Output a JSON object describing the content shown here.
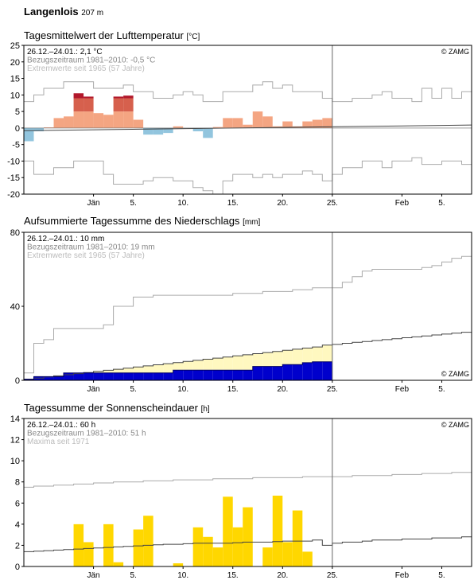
{
  "station": {
    "name": "Langenlois",
    "elevation": "207 m"
  },
  "x_ticks": [
    {
      "day": 7,
      "label": "Jän"
    },
    {
      "day": 11,
      "label": "5."
    },
    {
      "day": 16,
      "label": "10."
    },
    {
      "day": 21,
      "label": "15."
    },
    {
      "day": 26,
      "label": "20."
    },
    {
      "day": 31,
      "label": "25."
    },
    {
      "day": 38,
      "label": "Feb"
    },
    {
      "day": 42,
      "label": "5."
    }
  ],
  "colors": {
    "temp_warm": "#f4a582",
    "temp_warm_extreme": "#d6604d",
    "temp_record": "#b2182b",
    "temp_cold": "#92c5de",
    "precip_deficit": "#fff8c0",
    "precip_actual": "#0000cc",
    "sunshine": "#ffd700",
    "frame": "#000000",
    "ref_line": "#444444",
    "extreme_line": "#aaaaaa",
    "legend_gray": "#888888",
    "legend_light": "#bbbbbb"
  },
  "chart_data": [
    {
      "type": "bar",
      "title": "Tagesmittelwert der Lufttemperatur",
      "unit": "[°C]",
      "ylim": [
        -20,
        25
      ],
      "y_ticks": [
        -20,
        -15,
        -10,
        -5,
        0,
        5,
        10,
        15,
        20,
        25
      ],
      "x_domain_days": [
        0,
        45
      ],
      "current_day": 31,
      "copyright": "© ZAMG",
      "legend": [
        "26.12.–24.01.: 2,1 °C",
        "Bezugszeitraum 1981–2010: -0,5 °C",
        "Extremwerte seit 1965 (57 Jahre)"
      ],
      "reference_mean_y": {
        "x": [
          0,
          45
        ],
        "y": [
          -0.8,
          0.9
        ]
      },
      "series": [
        {
          "name": "daily_mean",
          "values": [
            -4.0,
            -1.0,
            0.2,
            3.0,
            3.5,
            10.5,
            9.5,
            4.5,
            4.0,
            9.5,
            9.8,
            2.5,
            -2.0,
            -2.0,
            -1.5,
            0.5,
            0.0,
            -1.0,
            -3.0,
            0.3,
            3.0,
            3.0,
            1.0,
            5.0,
            3.5,
            0.5,
            2.0,
            0.5,
            2.0,
            2.5,
            3.0
          ]
        },
        {
          "name": "max_extreme",
          "values": [
            8,
            10,
            12,
            12,
            14,
            14,
            14,
            12,
            12,
            12,
            13,
            11,
            11,
            9,
            9,
            10,
            11,
            10,
            8,
            8,
            11,
            11,
            11,
            13,
            14,
            12,
            13,
            11,
            11,
            11,
            9,
            8,
            8,
            9,
            9,
            10,
            11,
            9,
            9,
            8,
            12,
            9,
            12,
            9,
            11
          ]
        },
        {
          "name": "min_extreme",
          "values": [
            -10,
            -14,
            -14,
            -12,
            -12,
            -10,
            -10,
            -10,
            -14,
            -17,
            -17,
            -17,
            -16,
            -15,
            -15,
            -16,
            -16,
            -18,
            -19,
            -20,
            -16,
            -14,
            -14,
            -15,
            -14,
            -15,
            -14,
            -14,
            -13,
            -14,
            -16,
            -14,
            -12,
            -12,
            -10,
            -10,
            -12,
            -10,
            -10,
            -9,
            -11,
            -11,
            -10,
            -10,
            -11
          ]
        }
      ]
    },
    {
      "type": "area",
      "title": "Aufsummierte Tagessumme des Niederschlags",
      "unit": "[mm]",
      "ylim": [
        0,
        80
      ],
      "y_ticks": [
        0,
        40,
        80
      ],
      "x_domain_days": [
        0,
        45
      ],
      "current_day": 31,
      "copyright": "© ZAMG",
      "legend": [
        "26.12.–24.01.: 10 mm",
        "Bezugszeitraum 1981–2010: 19 mm",
        "Extremwerte seit 1965 (57 Jahre)"
      ],
      "series": [
        {
          "name": "actual_cumulative",
          "values": [
            0.5,
            2.0,
            2.0,
            2.0,
            4.0,
            4.0,
            4.0,
            4.0,
            4.0,
            4.0,
            4.0,
            4.0,
            4.0,
            4.0,
            4.0,
            5.5,
            5.5,
            5.5,
            5.5,
            5.5,
            5.5,
            5.5,
            5.5,
            7.5,
            7.5,
            7.5,
            8.5,
            8.5,
            9.5,
            10.0,
            10.0
          ]
        },
        {
          "name": "reference_cumulative",
          "values": [
            0.6,
            1.2,
            1.8,
            2.4,
            3.0,
            3.6,
            4.2,
            4.8,
            5.4,
            6.0,
            6.6,
            7.2,
            7.8,
            8.4,
            9.0,
            9.6,
            10.2,
            10.8,
            11.4,
            12.0,
            12.6,
            13.2,
            13.8,
            14.4,
            15.0,
            15.6,
            16.2,
            16.8,
            17.4,
            18.0,
            19.0,
            19.4,
            20.0,
            20.5,
            21.0,
            21.5,
            22.0,
            22.5,
            23.0,
            23.5,
            24.0,
            24.5,
            25.0,
            25.5,
            26.0
          ]
        },
        {
          "name": "max_cumulative",
          "values": [
            4,
            20,
            22,
            28,
            28,
            28,
            28,
            28,
            30,
            40,
            40,
            45,
            45,
            46,
            46,
            46,
            46,
            46,
            46,
            46,
            46,
            47,
            47,
            47,
            48,
            48,
            48,
            49,
            49,
            50,
            50,
            50,
            53,
            56,
            59,
            60,
            60,
            60,
            60,
            60,
            61,
            62,
            64,
            66,
            67
          ]
        }
      ]
    },
    {
      "type": "bar",
      "title": "Tagessumme der Sonnenscheindauer",
      "unit": "[h]",
      "ylim": [
        0,
        14
      ],
      "y_ticks": [
        0,
        2,
        4,
        6,
        8,
        10,
        12,
        14
      ],
      "x_domain_days": [
        0,
        45
      ],
      "current_day": 31,
      "copyright": "© ZAMG",
      "legend": [
        "26.12.–24.01.: 60 h",
        "Bezugszeitraum 1981–2010: 51 h",
        "Maxima seit 1971"
      ],
      "series": [
        {
          "name": "daily_sunshine",
          "values": [
            0,
            0,
            0,
            0,
            0,
            4.0,
            2.3,
            0,
            4.0,
            0.4,
            0,
            3.5,
            4.8,
            0,
            0,
            0.3,
            0,
            3.7,
            2.8,
            1.8,
            6.6,
            3.7,
            5.6,
            0,
            1.8,
            6.7,
            2.3,
            5.3,
            1.4,
            0,
            0
          ]
        },
        {
          "name": "reference_cumulative_curve",
          "values": [
            1.4,
            1.45,
            1.5,
            1.55,
            1.6,
            1.65,
            1.7,
            1.75,
            1.8,
            1.85,
            1.9,
            1.95,
            2.0,
            2.05,
            2.1,
            2.1,
            2.15,
            2.2,
            2.2,
            2.2,
            2.2,
            2.25,
            2.3,
            2.3,
            2.3,
            2.35,
            2.4,
            2.4,
            2.4,
            2.5,
            2.0,
            2.2,
            2.3,
            2.3,
            2.4,
            2.5,
            2.5,
            2.5,
            2.6,
            2.6,
            2.6,
            2.7,
            2.7,
            2.7,
            2.8
          ]
        },
        {
          "name": "max_curve",
          "values": [
            7.5,
            7.6,
            7.6,
            7.7,
            7.7,
            7.8,
            7.8,
            7.9,
            7.9,
            8.0,
            8.0,
            8.0,
            8.1,
            8.1,
            8.1,
            8.2,
            8.2,
            8.2,
            8.2,
            8.3,
            8.3,
            8.3,
            8.3,
            8.4,
            8.4,
            8.4,
            8.4,
            8.4,
            8.5,
            8.5,
            8.5,
            8.5,
            8.5,
            8.6,
            8.6,
            8.6,
            8.6,
            8.7,
            8.7,
            8.7,
            8.8,
            8.8,
            8.8,
            8.9,
            8.9
          ]
        }
      ]
    }
  ]
}
